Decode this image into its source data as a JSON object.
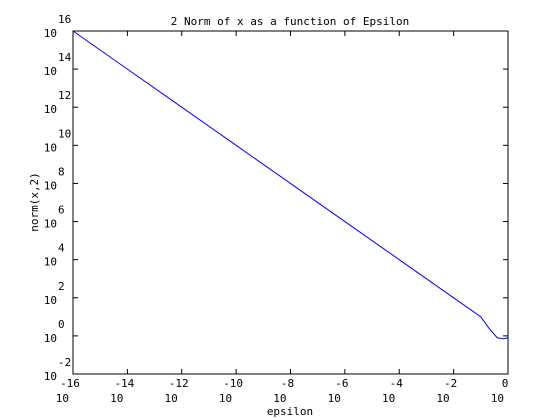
{
  "chart_data": {
    "type": "line",
    "title": "2 Norm of x as a function of Epsilon",
    "xlabel": "epsilon",
    "ylabel": "norm(x,2)",
    "xscale": "log",
    "yscale": "log",
    "xlim_exp": [
      -16,
      0
    ],
    "ylim_exp": [
      -2,
      16
    ],
    "xtick_exponents": [
      "-16",
      "-14",
      "-12",
      "-10",
      "-8",
      "-6",
      "-4",
      "-2",
      "0"
    ],
    "ytick_exponents": [
      "-2",
      "0",
      "2",
      "4",
      "6",
      "8",
      "10",
      "12",
      "14",
      "16"
    ],
    "tick_base": "10",
    "grid": false,
    "legend": "none",
    "series": [
      {
        "color": "#0000ff",
        "x": [
          1e-16,
          1e-14,
          1e-12,
          1e-10,
          1e-08,
          1e-06,
          0.0001,
          0.01,
          0.1,
          0.2,
          0.4,
          0.7,
          1.0
        ],
        "y": [
          1e+16,
          100000000000000.0,
          1000000000000.0,
          10000000000.0,
          100000000.0,
          1000000.0,
          10000.0,
          100.0,
          10.0,
          2.5,
          0.8,
          0.7,
          0.8
        ]
      }
    ]
  }
}
